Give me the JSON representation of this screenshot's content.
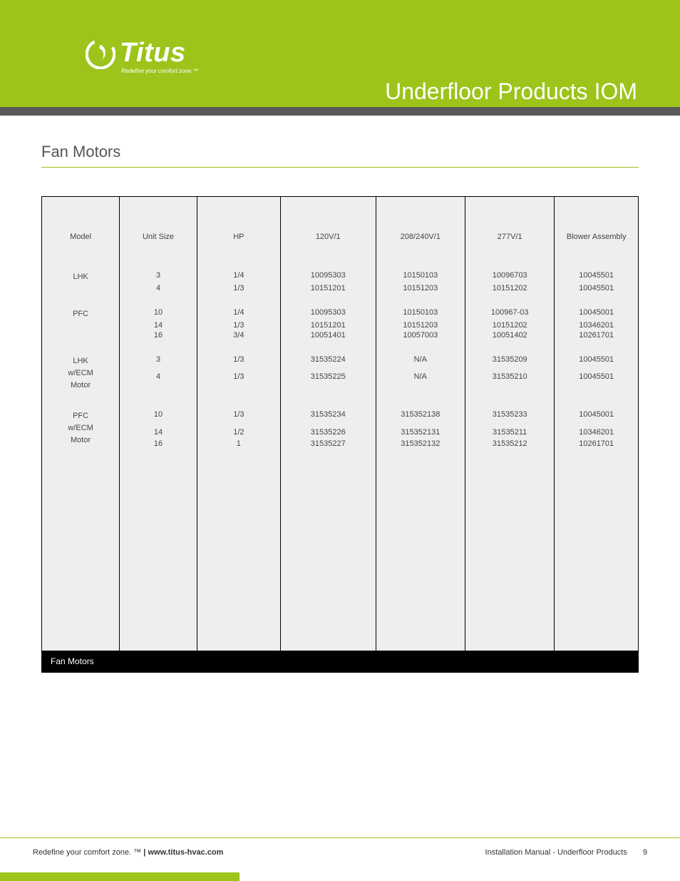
{
  "header": {
    "brand_name": "Titus",
    "brand_tagline": "Redefine your comfort zone.™",
    "page_title": "Underfloor Products IOM",
    "colors": {
      "green": "#9dc41a",
      "gray_bar": "#595959",
      "text": "#333333"
    }
  },
  "section": {
    "title": "Fan Motors"
  },
  "table": {
    "caption": "Fan Motors",
    "background_color": "#eeeeee",
    "border_color": "#000000",
    "columns": [
      {
        "label": "Model",
        "width": "13%"
      },
      {
        "label": "Unit Size",
        "width": "13%"
      },
      {
        "label": "HP",
        "width": "14%"
      },
      {
        "label": "120V/1",
        "width": "16%"
      },
      {
        "label": "208/240V/1",
        "width": "15%"
      },
      {
        "label": "277V/1",
        "width": "15%"
      },
      {
        "label": "Blower Assembly",
        "width": "14%"
      }
    ],
    "groups": [
      {
        "model": "LHK",
        "rows": [
          {
            "unit_size": "3",
            "hp": "1/4",
            "v120": "10095303",
            "v208": "10150103",
            "v277": "10096703",
            "blower": "10045501"
          },
          {
            "unit_size": "4",
            "hp": "1/3",
            "v120": "10151201",
            "v208": "10151203",
            "v277": "10151202",
            "blower": "10045501"
          }
        ]
      },
      {
        "model": "PFC",
        "rows": [
          {
            "unit_size": "10",
            "hp": "1/4",
            "v120": "10095303",
            "v208": "10150103",
            "v277": "100967-03",
            "blower": "10045001"
          },
          {
            "unit_size": "14",
            "hp": "1/3",
            "v120": "10151201",
            "v208": "10151203",
            "v277": "10151202",
            "blower": "10346201"
          },
          {
            "unit_size": "16",
            "hp": "3/4",
            "v120": "10051401",
            "v208": "10057003",
            "v277": "10051402",
            "blower": "10261701"
          }
        ]
      },
      {
        "model": "LHK\nw/ECM\nMotor",
        "rows": [
          {
            "unit_size": "3",
            "hp": "1/3",
            "v120": "31535224",
            "v208": "N/A",
            "v277": "31535209",
            "blower": "10045501"
          },
          {
            "unit_size": "4",
            "hp": "1/3",
            "v120": "31535225",
            "v208": "N/A",
            "v277": "31535210",
            "blower": "10045501"
          }
        ]
      },
      {
        "model": "PFC\nw/ECM\nMotor",
        "rows": [
          {
            "unit_size": "10",
            "hp": "1/3",
            "v120": "31535234",
            "v208": "315352138",
            "v277": "31535233",
            "blower": "10045001"
          },
          {
            "unit_size": "14",
            "hp": "1/2",
            "v120": "31535226",
            "v208": "315352131",
            "v277": "31535211",
            "blower": "10346201"
          },
          {
            "unit_size": "16",
            "hp": "1",
            "v120": "31535227",
            "v208": "315352132",
            "v277": "31535212",
            "blower": "10261701"
          }
        ]
      }
    ]
  },
  "footer": {
    "left_tagline": "Redefine your comfort zone. ™",
    "left_separator": " | ",
    "left_url": "www.titus-hvac.com",
    "right_text": "Installation Manual - Underfloor Products",
    "page_number": "9"
  }
}
